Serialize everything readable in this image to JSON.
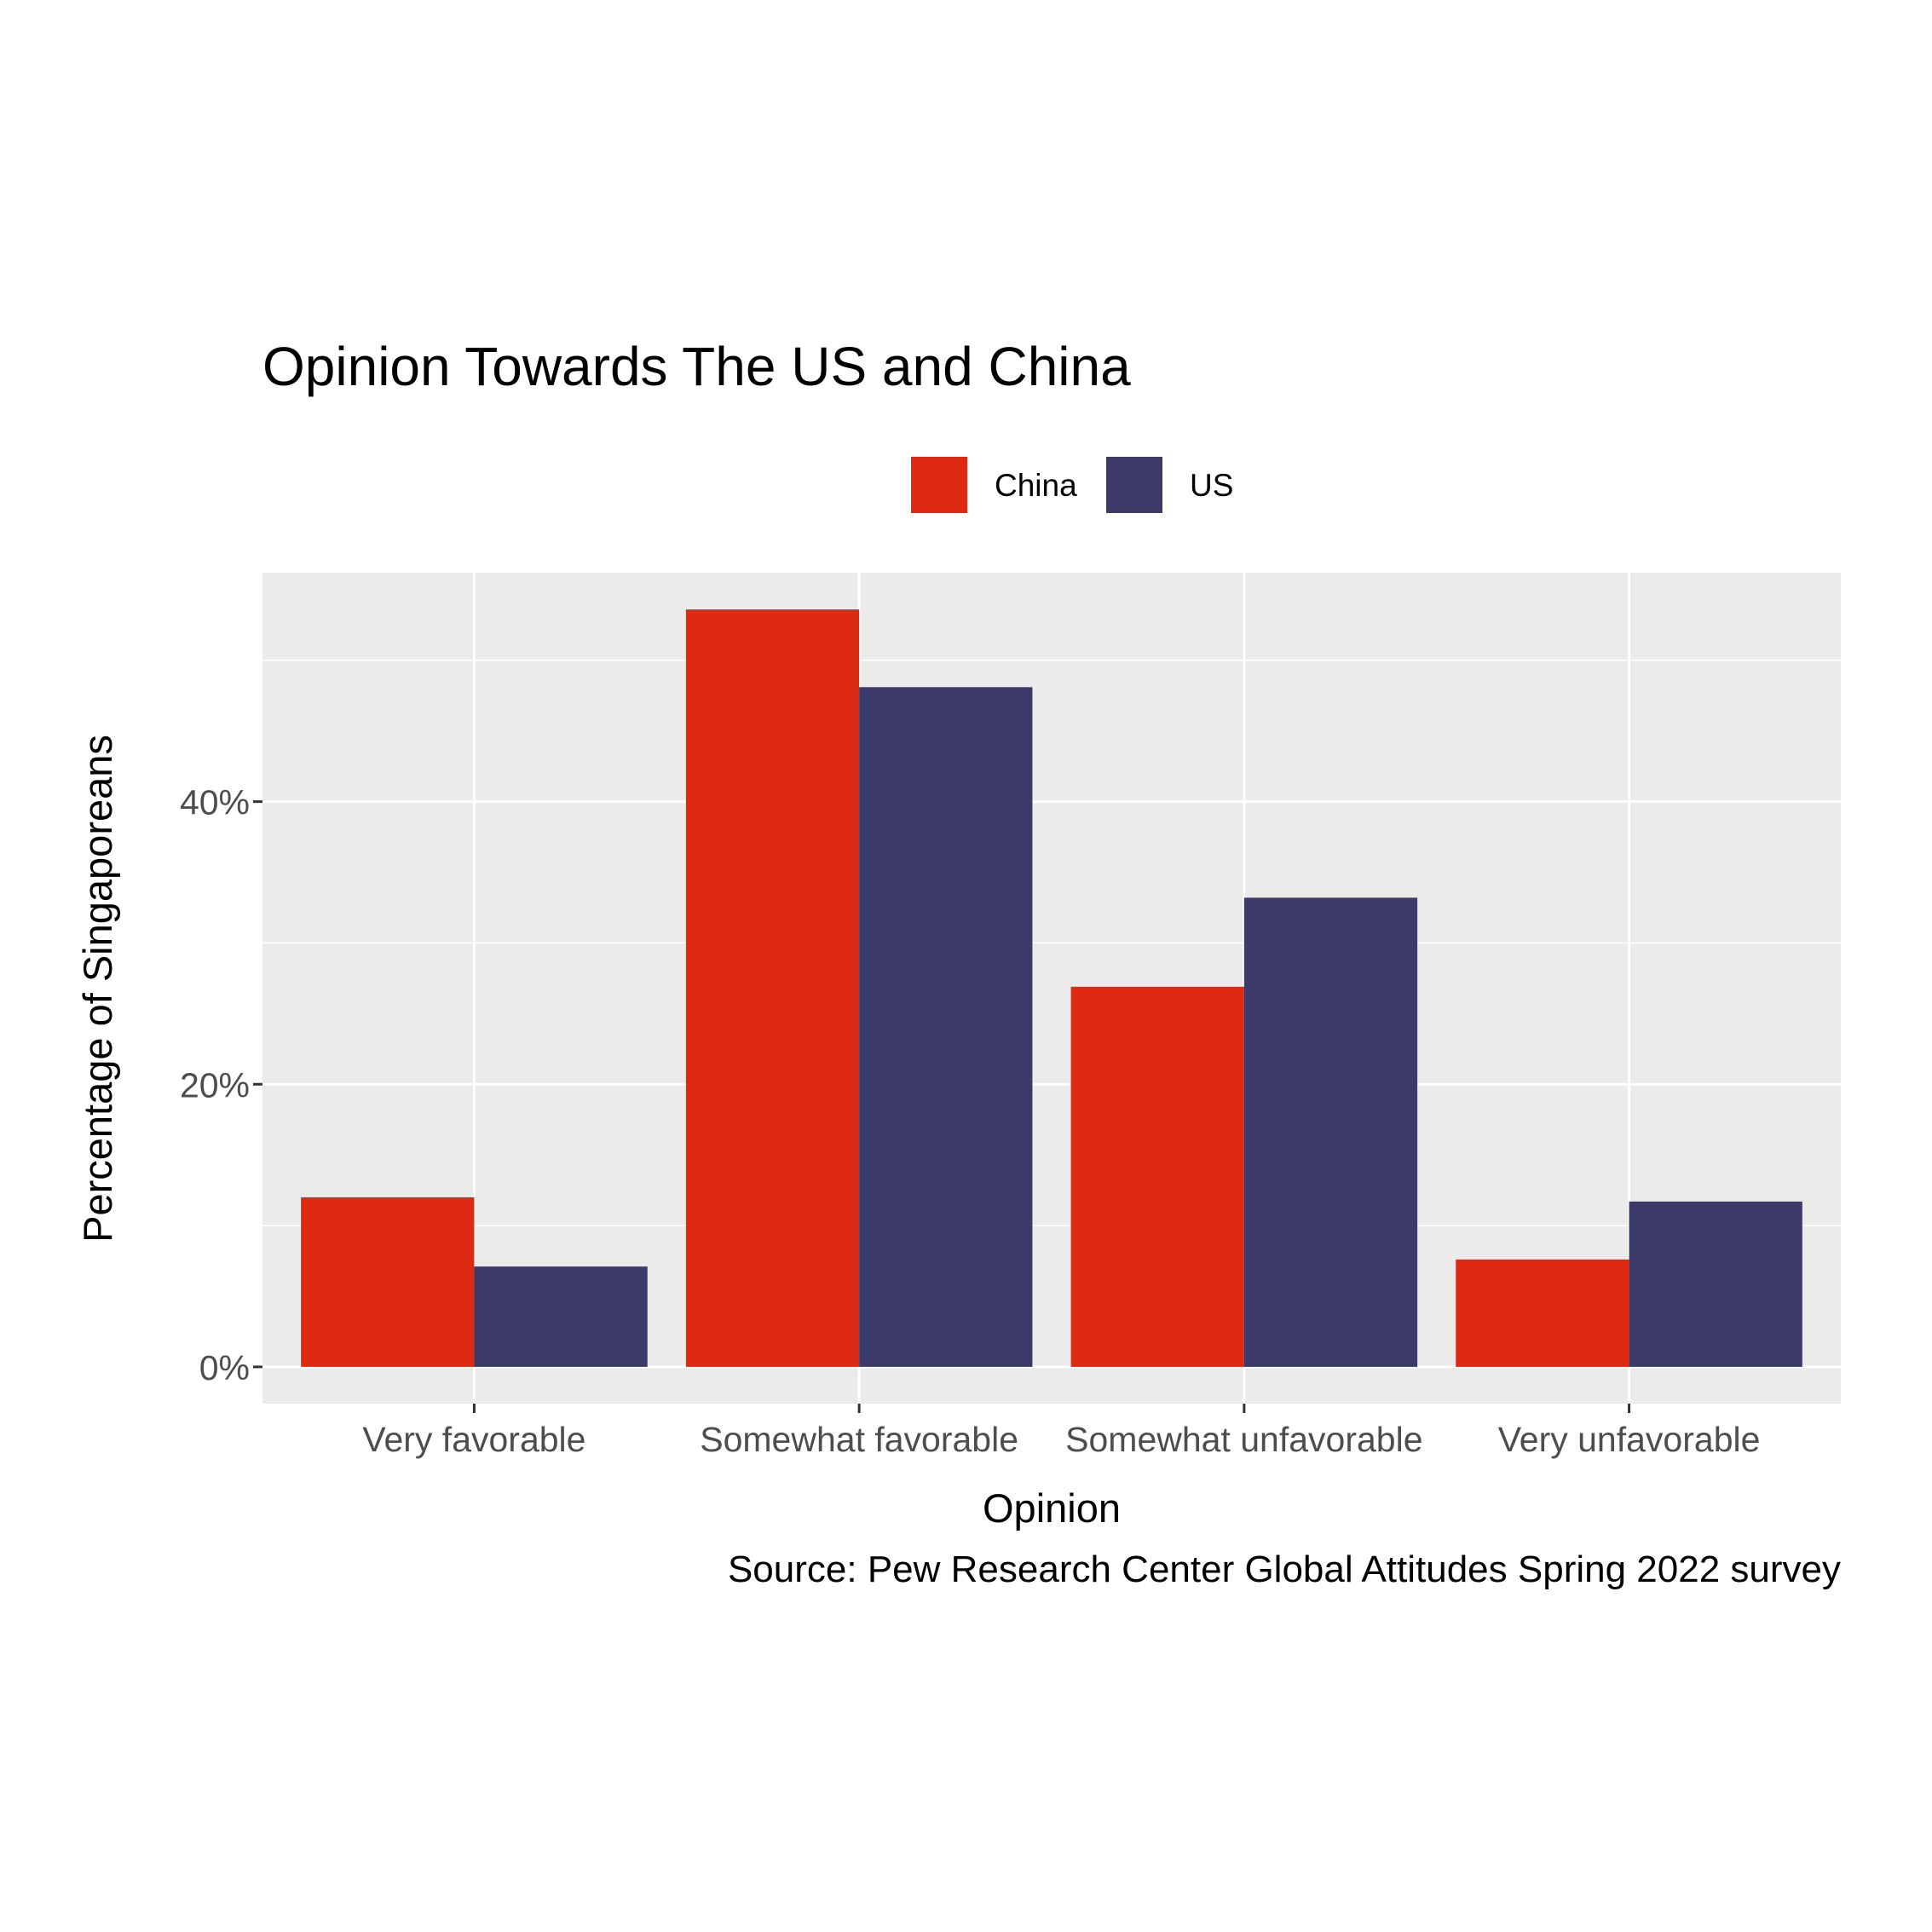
{
  "chart_data": {
    "type": "bar",
    "title": "Opinion Towards The US and China",
    "xlabel": "Opinion",
    "ylabel": "Percentage of Singaporeans",
    "caption": "Source: Pew Research Center Global Attitudes Spring 2022 survey",
    "categories": [
      "Very favorable",
      "Somewhat favorable",
      "Somewhat unfavorable",
      "Very unfavorable"
    ],
    "series": [
      {
        "name": "China",
        "color": "#de2a13",
        "values": [
          12.0,
          53.6,
          26.9,
          7.6
        ]
      },
      {
        "name": "US",
        "color": "#3c3a69",
        "values": [
          7.1,
          48.1,
          33.2,
          11.7
        ]
      }
    ],
    "ylim": [
      -2.6,
      56.2
    ],
    "yticks": [
      0,
      20,
      40
    ],
    "ytick_labels": [
      "0%",
      "20%",
      "40%"
    ],
    "grid": true,
    "panel_background": "#ebebeb",
    "legend_position": "top"
  }
}
